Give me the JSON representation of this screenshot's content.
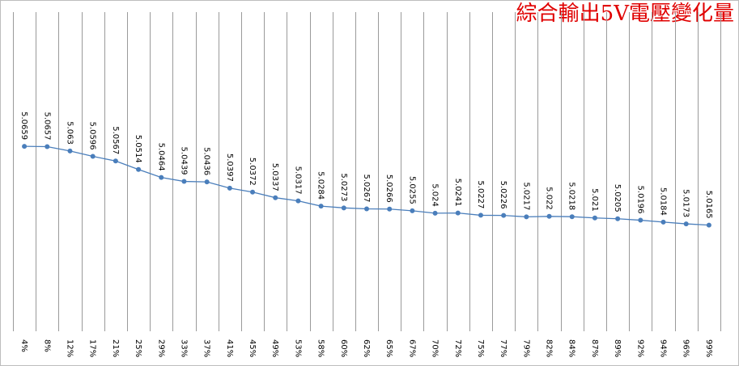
{
  "chart_data": {
    "type": "line",
    "title": "綜合輸出5V電壓變化量",
    "title_color": "#e00000",
    "categories": [
      "4%",
      "8%",
      "12%",
      "17%",
      "21%",
      "25%",
      "29%",
      "33%",
      "37%",
      "41%",
      "45%",
      "49%",
      "53%",
      "58%",
      "60%",
      "62%",
      "65%",
      "67%",
      "70%",
      "72%",
      "75%",
      "77%",
      "79%",
      "82%",
      "84%",
      "87%",
      "89%",
      "92%",
      "94%",
      "96%",
      "99%"
    ],
    "series": [
      {
        "color": "#4a7ebb",
        "values": [
          5.0659,
          5.0657,
          5.063,
          5.0596,
          5.0567,
          5.0514,
          5.0464,
          5.0439,
          5.0436,
          5.0397,
          5.0372,
          5.0337,
          5.0317,
          5.0284,
          5.0273,
          5.0267,
          5.0266,
          5.0255,
          5.024,
          5.0241,
          5.0227,
          5.0226,
          5.0217,
          5.022,
          5.0218,
          5.021,
          5.0205,
          5.0196,
          5.0184,
          5.0173,
          5.0165
        ]
      }
    ],
    "ylim": [
      4.95,
      5.15
    ],
    "grid": true
  }
}
